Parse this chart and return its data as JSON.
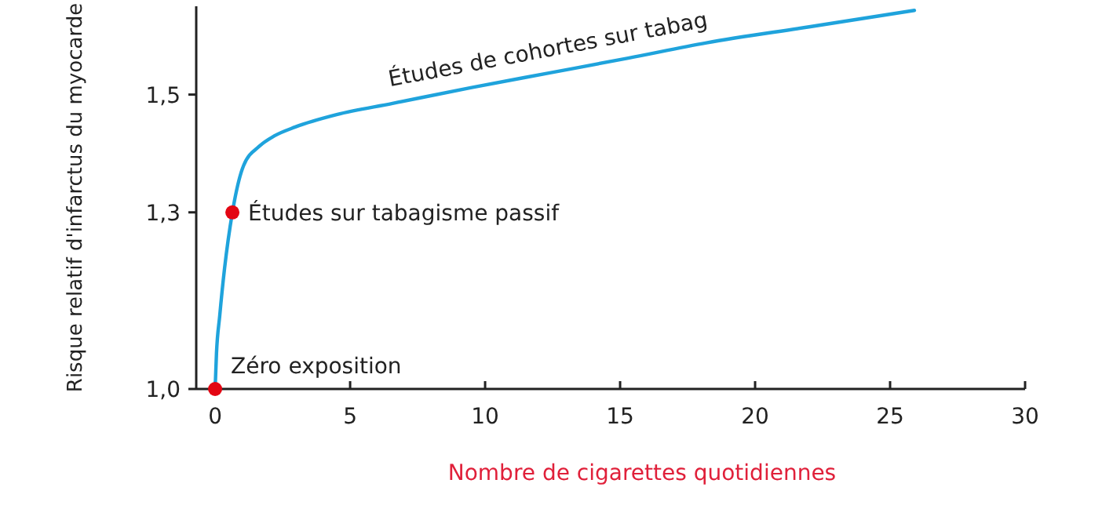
{
  "chart_data": {
    "type": "line",
    "xlabel": "Nombre de cigarettes quotidiennes",
    "ylabel": "Risque relatif d'infarctus du myocarde",
    "xlim": [
      -0.7,
      30
    ],
    "xticks": [
      0,
      5,
      10,
      15,
      20,
      25,
      30
    ],
    "ylim": [
      1.0,
      1.65
    ],
    "yticks": [
      {
        "value": 1.0,
        "label": "1,0"
      },
      {
        "value": 1.3,
        "label": "1,3"
      },
      {
        "value": 1.5,
        "label": "1,5"
      }
    ],
    "grid": false,
    "series": [
      {
        "color": "#1fa3dc",
        "x": [
          0,
          0.05,
          0.17,
          0.35,
          0.64,
          1.05,
          1.63,
          2.2,
          2.97,
          4.5,
          6.57,
          9.5,
          12.4,
          15.3,
          18.2,
          22,
          25.9
        ],
        "values": [
          1.0,
          1.06,
          1.124,
          1.205,
          1.3,
          1.379,
          1.412,
          1.43,
          1.445,
          1.466,
          1.485,
          1.512,
          1.537,
          1.562,
          1.588,
          1.615,
          1.643
        ]
      },
      {
        "type": "scatter",
        "color": "#e30613",
        "marker": "circle",
        "x": [
          0,
          0.64
        ],
        "values": [
          1.0,
          1.3
        ]
      }
    ],
    "annotations": [
      {
        "text": "Zéro exposition",
        "x": 0,
        "y": 1.0
      },
      {
        "text": "Études sur tabagisme passif",
        "x": 0.64,
        "y": 1.3
      },
      {
        "text": "Études de cohortes sur tabag",
        "x": 12,
        "y": 1.537
      }
    ]
  }
}
